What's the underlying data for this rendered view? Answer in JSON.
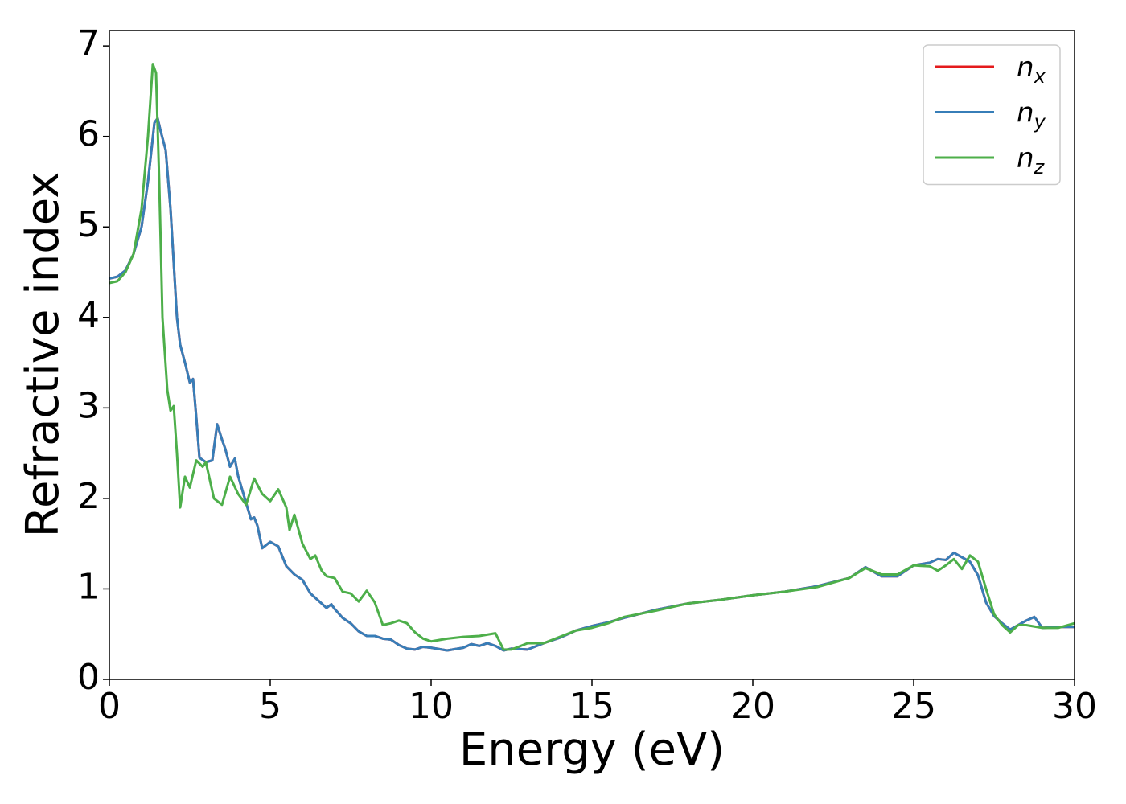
{
  "chart_data": {
    "type": "line",
    "xlabel": "Energy (eV)",
    "ylabel": "Refractive index",
    "xlim": [
      0,
      30
    ],
    "xticks": [
      0,
      5,
      10,
      15,
      20,
      25,
      30
    ],
    "ylim": [
      0,
      7.17
    ],
    "yticks": [
      0,
      1,
      2,
      3,
      4,
      5,
      6,
      7
    ],
    "legend": "upper right",
    "series": [
      {
        "name": "nx",
        "color": "#e41a1c",
        "x": [
          0,
          0.25,
          0.5,
          0.75,
          1.0,
          1.2,
          1.4,
          1.5,
          1.6,
          1.75,
          1.9,
          2.0,
          2.1,
          2.2,
          2.35,
          2.5,
          2.6,
          2.7,
          2.8,
          3.0,
          3.2,
          3.35,
          3.5,
          3.6,
          3.75,
          3.9,
          4.0,
          4.25,
          4.4,
          4.5,
          4.6,
          4.75,
          5.0,
          5.25,
          5.5,
          5.75,
          6.0,
          6.25,
          6.5,
          6.75,
          6.9,
          7.0,
          7.25,
          7.5,
          7.75,
          8.0,
          8.25,
          8.5,
          8.75,
          9.0,
          9.25,
          9.5,
          9.75,
          10.0,
          10.5,
          11.0,
          11.25,
          11.5,
          11.75,
          12.0,
          12.25,
          12.5,
          13.0,
          13.5,
          14.0,
          14.5,
          15.0,
          15.5,
          16,
          17,
          18,
          19,
          20,
          21,
          22,
          23,
          23.5,
          24,
          24.5,
          25,
          25.5,
          25.75,
          26,
          26.25,
          26.5,
          26.75,
          27,
          27.25,
          27.5,
          27.75,
          28.0,
          28.5,
          28.75,
          29.0,
          29.5,
          30
        ],
        "values": [
          4.43,
          4.45,
          4.52,
          4.7,
          5.0,
          5.5,
          6.15,
          6.2,
          6.05,
          5.85,
          5.2,
          4.6,
          4.0,
          3.7,
          3.5,
          3.28,
          3.32,
          2.9,
          2.45,
          2.4,
          2.42,
          2.82,
          2.65,
          2.55,
          2.35,
          2.44,
          2.25,
          1.95,
          1.77,
          1.79,
          1.7,
          1.45,
          1.52,
          1.47,
          1.25,
          1.16,
          1.1,
          0.95,
          0.87,
          0.79,
          0.83,
          0.78,
          0.68,
          0.62,
          0.53,
          0.48,
          0.48,
          0.45,
          0.44,
          0.38,
          0.34,
          0.33,
          0.36,
          0.35,
          0.32,
          0.35,
          0.39,
          0.37,
          0.4,
          0.37,
          0.32,
          0.34,
          0.33,
          0.4,
          0.46,
          0.54,
          0.59,
          0.63,
          0.68,
          0.77,
          0.84,
          0.88,
          0.93,
          0.97,
          1.03,
          1.12,
          1.24,
          1.14,
          1.14,
          1.26,
          1.29,
          1.33,
          1.32,
          1.4,
          1.35,
          1.3,
          1.15,
          0.85,
          0.7,
          0.62,
          0.55,
          0.65,
          0.69,
          0.57,
          0.58,
          0.58
        ]
      },
      {
        "name": "ny",
        "color": "#377eb8",
        "x": [
          0,
          0.25,
          0.5,
          0.75,
          1.0,
          1.2,
          1.4,
          1.5,
          1.6,
          1.75,
          1.9,
          2.0,
          2.1,
          2.2,
          2.35,
          2.5,
          2.6,
          2.7,
          2.8,
          3.0,
          3.2,
          3.35,
          3.5,
          3.6,
          3.75,
          3.9,
          4.0,
          4.25,
          4.4,
          4.5,
          4.6,
          4.75,
          5.0,
          5.25,
          5.5,
          5.75,
          6.0,
          6.25,
          6.5,
          6.75,
          6.9,
          7.0,
          7.25,
          7.5,
          7.75,
          8.0,
          8.25,
          8.5,
          8.75,
          9.0,
          9.25,
          9.5,
          9.75,
          10.0,
          10.5,
          11.0,
          11.25,
          11.5,
          11.75,
          12.0,
          12.25,
          12.5,
          13.0,
          13.5,
          14.0,
          14.5,
          15.0,
          15.5,
          16,
          17,
          18,
          19,
          20,
          21,
          22,
          23,
          23.5,
          24,
          24.5,
          25,
          25.5,
          25.75,
          26,
          26.25,
          26.5,
          26.75,
          27,
          27.25,
          27.5,
          27.75,
          28.0,
          28.5,
          28.75,
          29.0,
          29.5,
          30
        ],
        "values": [
          4.43,
          4.45,
          4.52,
          4.7,
          5.0,
          5.5,
          6.15,
          6.2,
          6.05,
          5.85,
          5.2,
          4.6,
          4.0,
          3.7,
          3.5,
          3.28,
          3.32,
          2.9,
          2.45,
          2.4,
          2.42,
          2.82,
          2.65,
          2.55,
          2.35,
          2.44,
          2.25,
          1.95,
          1.77,
          1.79,
          1.7,
          1.45,
          1.52,
          1.47,
          1.25,
          1.16,
          1.1,
          0.95,
          0.87,
          0.79,
          0.83,
          0.78,
          0.68,
          0.62,
          0.53,
          0.48,
          0.48,
          0.45,
          0.44,
          0.38,
          0.34,
          0.33,
          0.36,
          0.35,
          0.32,
          0.35,
          0.39,
          0.37,
          0.4,
          0.37,
          0.32,
          0.34,
          0.33,
          0.4,
          0.46,
          0.54,
          0.59,
          0.63,
          0.68,
          0.77,
          0.84,
          0.88,
          0.93,
          0.97,
          1.03,
          1.12,
          1.24,
          1.14,
          1.14,
          1.26,
          1.29,
          1.33,
          1.32,
          1.4,
          1.35,
          1.3,
          1.15,
          0.85,
          0.7,
          0.62,
          0.55,
          0.65,
          0.69,
          0.57,
          0.58,
          0.58
        ]
      },
      {
        "name": "nz",
        "color": "#4daf4a",
        "x": [
          0,
          0.25,
          0.5,
          0.75,
          1.0,
          1.2,
          1.35,
          1.45,
          1.55,
          1.65,
          1.8,
          1.9,
          2.0,
          2.1,
          2.2,
          2.35,
          2.5,
          2.7,
          2.9,
          3.0,
          3.25,
          3.5,
          3.75,
          4.0,
          4.25,
          4.5,
          4.75,
          5.0,
          5.25,
          5.5,
          5.6,
          5.75,
          6.0,
          6.25,
          6.4,
          6.6,
          6.75,
          7.0,
          7.25,
          7.5,
          7.75,
          8.0,
          8.25,
          8.5,
          8.75,
          9.0,
          9.25,
          9.5,
          9.75,
          10.0,
          10.5,
          11.0,
          11.5,
          12.0,
          12.25,
          12.5,
          13.0,
          13.5,
          14.0,
          14.5,
          15.0,
          15.5,
          16,
          17,
          18,
          19,
          20,
          21,
          22,
          23,
          23.5,
          24,
          24.5,
          25,
          25.5,
          25.75,
          26,
          26.25,
          26.5,
          26.75,
          27,
          27.25,
          27.5,
          27.75,
          28,
          28.25,
          28.5,
          29,
          29.5,
          30
        ],
        "values": [
          4.38,
          4.4,
          4.5,
          4.7,
          5.2,
          6.0,
          6.8,
          6.7,
          5.5,
          4.0,
          3.2,
          2.97,
          3.02,
          2.5,
          1.9,
          2.24,
          2.12,
          2.42,
          2.35,
          2.4,
          2.0,
          1.93,
          2.24,
          2.05,
          1.93,
          2.22,
          2.05,
          1.97,
          2.1,
          1.9,
          1.65,
          1.82,
          1.5,
          1.33,
          1.37,
          1.2,
          1.14,
          1.12,
          0.97,
          0.95,
          0.86,
          0.98,
          0.85,
          0.6,
          0.62,
          0.65,
          0.62,
          0.52,
          0.45,
          0.42,
          0.45,
          0.47,
          0.48,
          0.51,
          0.33,
          0.33,
          0.4,
          0.4,
          0.47,
          0.54,
          0.57,
          0.62,
          0.69,
          0.76,
          0.84,
          0.88,
          0.93,
          0.97,
          1.02,
          1.12,
          1.23,
          1.16,
          1.16,
          1.26,
          1.25,
          1.2,
          1.26,
          1.33,
          1.22,
          1.37,
          1.3,
          1.0,
          0.72,
          0.6,
          0.52,
          0.6,
          0.6,
          0.57,
          0.57,
          0.62
        ]
      }
    ]
  }
}
